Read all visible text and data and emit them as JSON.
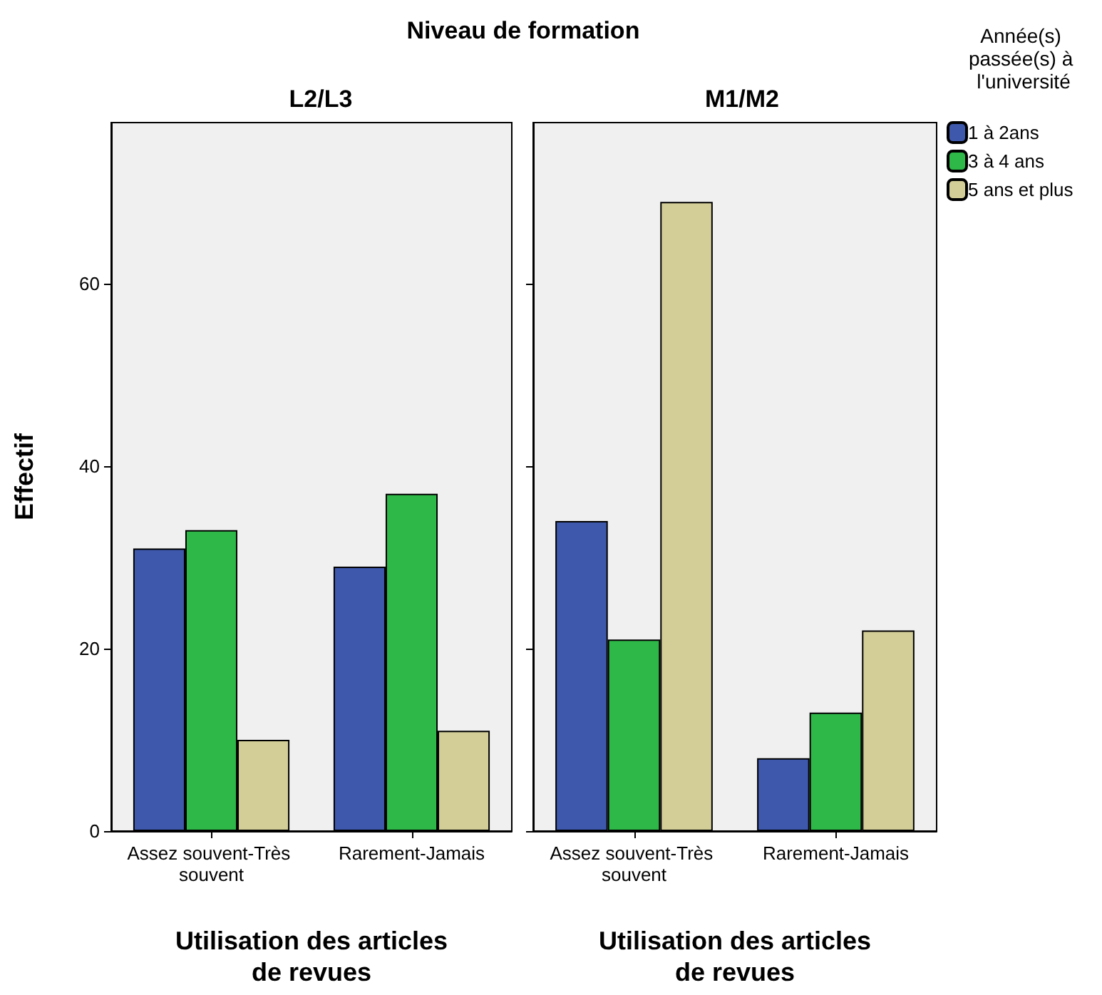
{
  "chart_data": [
    {
      "type": "bar",
      "title": "L2/L3",
      "annotations": [
        "Niveau de formation"
      ],
      "xlabel": "Utilisation des articles de revues",
      "ylabel": "Effectif",
      "categories": [
        "Assez souvent-Très souvent",
        "Rarement-Jamais"
      ],
      "series": [
        {
          "color": "#3e58ac",
          "values": [
            31,
            29
          ]
        },
        {
          "color": "#2eb848",
          "values": [
            33,
            37
          ]
        },
        {
          "color": "#d3ce97",
          "values": [
            10,
            11
          ]
        }
      ],
      "ylim": [
        0,
        77.7
      ],
      "yticks": [
        0,
        20,
        40,
        60
      ],
      "grid": false
    },
    {
      "type": "bar",
      "title": "M1/M2",
      "xlabel": "Utilisation des articles de revues",
      "legend_title": "Année(s) passée(s) à l'université",
      "legend": "right",
      "categories": [
        "Assez souvent-Très souvent",
        "Rarement-Jamais"
      ],
      "series": [
        {
          "name": "1 à 2ans",
          "color": "#3e58ac",
          "values": [
            34,
            8
          ]
        },
        {
          "name": "3 à 4 ans",
          "color": "#2eb848",
          "values": [
            21,
            13
          ]
        },
        {
          "name": "5 ans et plus",
          "color": "#d3ce97",
          "values": [
            69,
            22
          ]
        }
      ],
      "ylim": [
        0,
        77.7
      ],
      "yticks": [
        0,
        20,
        40,
        60
      ],
      "tick_labels": "x",
      "grid": false
    }
  ]
}
